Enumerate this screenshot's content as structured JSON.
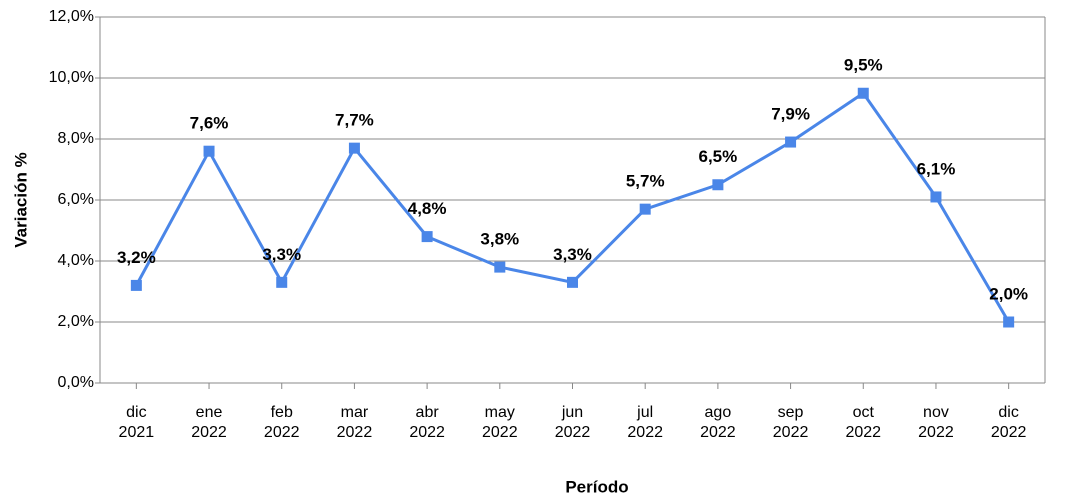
{
  "chart_data": {
    "type": "line",
    "x_label": "Período",
    "y_label": "Variación %",
    "categories": [
      "dic\n2021",
      "ene\n2022",
      "feb\n2022",
      "mar\n2022",
      "abr\n2022",
      "may\n2022",
      "jun\n2022",
      "jul\n2022",
      "ago\n2022",
      "sep\n2022",
      "oct\n2022",
      "nov\n2022",
      "dic\n2022"
    ],
    "series": [
      {
        "color": "#4a86e8",
        "values": [
          3.2,
          7.6,
          3.3,
          7.7,
          4.8,
          3.8,
          3.3,
          5.7,
          6.5,
          7.9,
          9.5,
          6.1,
          2.0
        ],
        "value_labels": [
          "3,2%",
          "7,6%",
          "3,3%",
          "7,7%",
          "4,8%",
          "3,8%",
          "3,3%",
          "5,7%",
          "6,5%",
          "7,9%",
          "9,5%",
          "6,1%",
          "2,0%"
        ]
      }
    ],
    "ylim": [
      0,
      12
    ],
    "yticks": [
      {
        "value": 0,
        "label": "0,0%"
      },
      {
        "value": 2,
        "label": "2,0%"
      },
      {
        "value": 4,
        "label": "4,0%"
      },
      {
        "value": 6,
        "label": "6,0%"
      },
      {
        "value": 8,
        "label": "8,0%"
      },
      {
        "value": 10,
        "label": "10,0%"
      },
      {
        "value": 12,
        "label": "12,0%"
      }
    ],
    "grid": true
  }
}
